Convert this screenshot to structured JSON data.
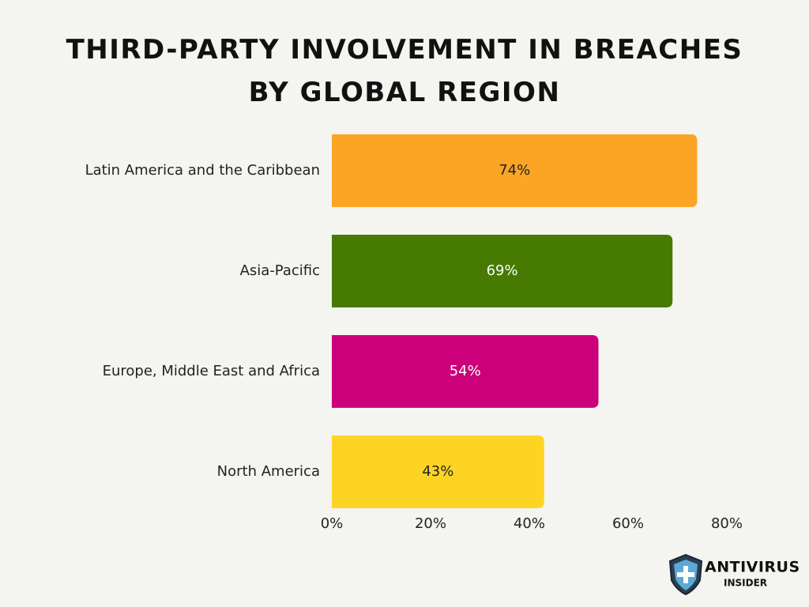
{
  "chart_data": {
    "type": "bar",
    "orientation": "horizontal",
    "title": "THIRD-PARTY INVOLVEMENT IN BREACHES BY GLOBAL REGION",
    "categories": [
      "Latin America and the Caribbean",
      "Asia-Pacific",
      "Europe, Middle East and Africa",
      "North America"
    ],
    "values": [
      74,
      69,
      54,
      43
    ],
    "value_labels": [
      "74%",
      "69%",
      "54%",
      "43%"
    ],
    "colors": [
      "#fca525",
      "#467a00",
      "#cc007a",
      "#fdd424"
    ],
    "xlim": [
      0,
      80
    ],
    "xticks": [
      {
        "value": 0,
        "label": "0%"
      },
      {
        "value": 20,
        "label": "20%"
      },
      {
        "value": 40,
        "label": "40%"
      },
      {
        "value": 60,
        "label": "60%"
      },
      {
        "value": 80,
        "label": "80%"
      }
    ],
    "grid": false
  },
  "logo": {
    "name": "ANTIVIRUS",
    "subname": "INSIDER"
  }
}
